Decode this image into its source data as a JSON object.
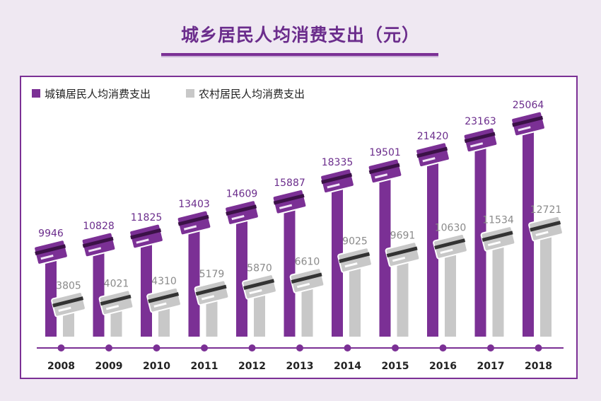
{
  "title": "城乡居民人均消费支出（元）",
  "colors": {
    "urban": "#7b3095",
    "rural": "#c8c8c8",
    "axis": "#7b3095"
  },
  "chart_data": {
    "type": "bar",
    "categories": [
      "2008",
      "2009",
      "2010",
      "2011",
      "2012",
      "2013",
      "2014",
      "2015",
      "2016",
      "2017",
      "2018"
    ],
    "series": [
      {
        "name": "城镇居民人均消费支出",
        "values": [
          9946,
          10828,
          11825,
          13403,
          14609,
          15887,
          18335,
          19501,
          21420,
          23163,
          25064
        ]
      },
      {
        "name": "农村居民人均消费支出",
        "values": [
          3805,
          4021,
          4310,
          5179,
          5870,
          6610,
          9025,
          9691,
          10630,
          11534,
          12721
        ]
      }
    ],
    "legend": "top-left",
    "grid": false
  }
}
